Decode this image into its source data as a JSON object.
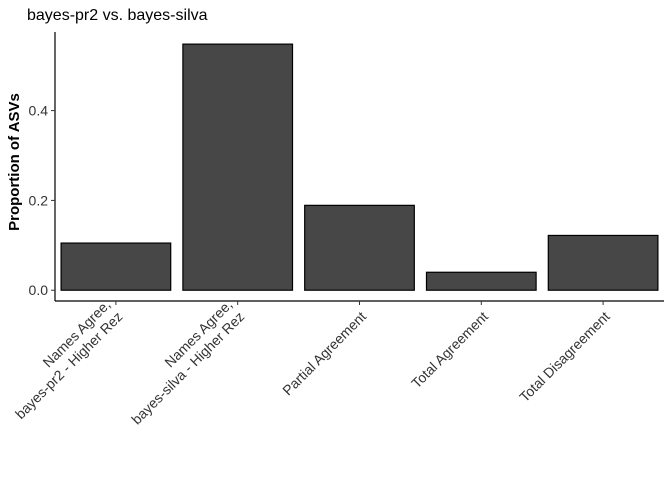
{
  "chart_data": {
    "type": "bar",
    "title": "bayes-pr2 vs. bayes-silva",
    "xlabel": "",
    "ylabel": "Proportion of ASVs",
    "categories": [
      [
        "Names Agree,",
        "bayes-pr2 - Higher Rez"
      ],
      [
        "Names Agree,",
        "bayes-silva - Higher Rez"
      ],
      [
        "Partial Agreement"
      ],
      [
        "Total Agreement"
      ],
      [
        "Total Disagreement"
      ]
    ],
    "values": [
      0.105,
      0.548,
      0.189,
      0.04,
      0.122
    ],
    "yticks": [
      "0.0",
      "0.2",
      "0.4"
    ],
    "ylim": [
      -0.024,
      0.575
    ],
    "grid": false,
    "bar_color": "#474747"
  }
}
